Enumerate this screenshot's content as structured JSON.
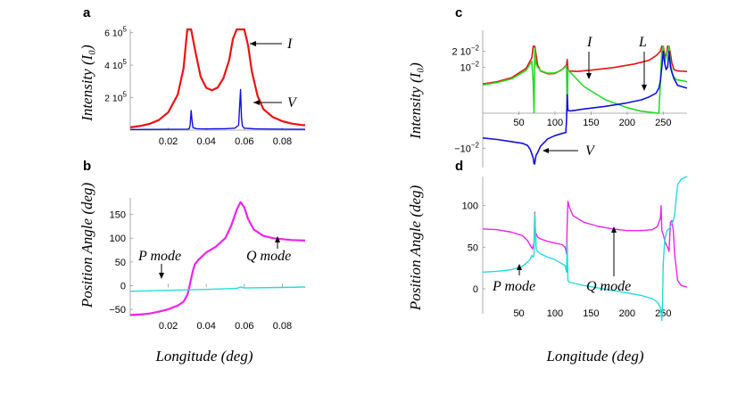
{
  "chart_data": [
    {
      "panel": "a",
      "type": "line",
      "ylabel": "Intensity (I₀)",
      "xlim": [
        0,
        0.092
      ],
      "ylim": [
        0,
        620000
      ],
      "xticks": [
        0.02,
        0.04,
        0.06,
        0.08
      ],
      "xtick_labels": [
        "0.02",
        "0.04",
        "0.06",
        "0.08"
      ],
      "yticks": [
        200000,
        400000,
        600000
      ],
      "ytick_labels": [
        "2 10⁵",
        "4 10⁵",
        "6 10⁵"
      ],
      "series": [
        {
          "name": "I",
          "color": "#ee1111",
          "x": [
            0,
            0.005,
            0.01,
            0.015,
            0.02,
            0.025,
            0.028,
            0.03,
            0.032,
            0.034,
            0.037,
            0.04,
            0.043,
            0.046,
            0.049,
            0.052,
            0.054,
            0.056,
            0.058,
            0.06,
            0.062,
            0.064,
            0.067,
            0.07,
            0.075,
            0.08,
            0.085,
            0.09,
            0.092
          ],
          "y": [
            17000,
            25000,
            38000,
            62000,
            110000,
            220000,
            380000,
            620000,
            620000,
            500000,
            330000,
            260000,
            245000,
            262000,
            320000,
            430000,
            560000,
            620000,
            620000,
            620000,
            520000,
            360000,
            210000,
            130000,
            80000,
            55000,
            40000,
            32000,
            30000
          ]
        },
        {
          "name": "V",
          "color": "#1111dd",
          "x": [
            0,
            0.01,
            0.02,
            0.03,
            0.031,
            0.0315,
            0.032,
            0.0325,
            0.033,
            0.035,
            0.04,
            0.045,
            0.05,
            0.055,
            0.057,
            0.058,
            0.0585,
            0.059,
            0.06,
            0.065,
            0.07,
            0.08,
            0.092
          ],
          "y": [
            4000,
            4500,
            5000,
            6000,
            8000,
            30000,
            120000,
            60000,
            15000,
            9000,
            7000,
            8000,
            9000,
            12000,
            30000,
            250000,
            80000,
            25000,
            12000,
            8000,
            7000,
            6000,
            5000
          ]
        }
      ],
      "annotations": [
        "I",
        "V"
      ]
    },
    {
      "panel": "b",
      "type": "line",
      "ylabel": "Position Angle (deg)",
      "xlabel": "Longitude (deg)",
      "xlim": [
        0,
        0.092
      ],
      "ylim": [
        -65,
        185
      ],
      "xticks": [
        0.02,
        0.04,
        0.06,
        0.08
      ],
      "xtick_labels": [
        "0.02",
        "0.04",
        "0.06",
        "0.08"
      ],
      "yticks": [
        -50,
        0,
        50,
        100,
        150
      ],
      "ytick_labels": [
        "−50",
        "0",
        "50",
        "100",
        "150"
      ],
      "series": [
        {
          "name": "Q mode",
          "color": "#ee22ee",
          "x": [
            0,
            0.005,
            0.01,
            0.015,
            0.02,
            0.025,
            0.028,
            0.03,
            0.031,
            0.032,
            0.033,
            0.034,
            0.036,
            0.04,
            0.045,
            0.05,
            0.053,
            0.056,
            0.058,
            0.06,
            0.062,
            0.065,
            0.07,
            0.075,
            0.08,
            0.085,
            0.092
          ],
          "y": [
            -62,
            -61,
            -59,
            -55,
            -50,
            -42,
            -34,
            -20,
            -5,
            15,
            32,
            45,
            55,
            70,
            82,
            100,
            125,
            160,
            176,
            165,
            140,
            118,
            105,
            100,
            98,
            96,
            95
          ]
        },
        {
          "name": "P mode",
          "color": "#22dddd",
          "x": [
            0,
            0.02,
            0.04,
            0.056,
            0.058,
            0.06,
            0.08,
            0.092
          ],
          "y": [
            -12,
            -10,
            -8,
            -6,
            -3,
            -5,
            -4,
            -3
          ]
        }
      ],
      "annotations": [
        "P mode",
        "Q mode"
      ]
    },
    {
      "panel": "c",
      "type": "line",
      "ylabel": "Intensity (I₀)",
      "xlim": [
        0,
        283
      ],
      "xticks": [
        50,
        100,
        150,
        200,
        250
      ],
      "xtick_labels": [
        "50",
        "100",
        "150",
        "200",
        "250"
      ],
      "ytick_labels": [
        "2 10⁻²",
        "10⁻²",
        "−10⁻²"
      ],
      "yscale": "symlog",
      "series": [
        {
          "name": "I",
          "color": "#ee1111",
          "x": [
            0,
            20,
            40,
            60,
            68,
            70,
            72,
            74,
            76,
            80,
            90,
            100,
            110,
            116,
            117,
            118,
            120,
            130,
            150,
            180,
            210,
            230,
            240,
            246,
            248,
            250,
            252,
            254,
            256,
            258,
            260,
            262,
            265,
            270,
            283
          ],
          "y": [
            0.0048,
            0.0053,
            0.0063,
            0.0095,
            0.015,
            0.025,
            0.025,
            0.017,
            0.011,
            0.0085,
            0.0075,
            0.0076,
            0.009,
            0.011,
            0.014,
            0.009,
            0.0085,
            0.0083,
            0.0088,
            0.0098,
            0.0115,
            0.0135,
            0.0165,
            0.02,
            0.025,
            0.025,
            0.018,
            0.015,
            0.025,
            0.025,
            0.018,
            0.012,
            0.009,
            0.0085,
            0.0083
          ]
        },
        {
          "name": "L",
          "color": "#22dd22",
          "x": [
            0,
            20,
            40,
            60,
            68,
            70,
            71,
            72,
            74,
            76,
            80,
            90,
            100,
            110,
            116,
            117,
            118,
            120,
            140,
            170,
            200,
            220,
            235,
            240,
            244,
            246,
            248,
            250,
            252,
            256,
            258,
            260,
            263,
            268,
            283
          ],
          "y": [
            0.0046,
            0.0051,
            0.006,
            0.0087,
            0.013,
            0.005,
            0.0003,
            0.022,
            0.0112,
            0.0101,
            0.0086,
            0.0077,
            0.0078,
            0.009,
            0.0106,
            0.001,
            0.0088,
            0.0084,
            0.0043,
            0.0024,
            0.0017,
            0.0011,
            0.0004,
            0.0001,
            4e-05,
            0.005,
            0.02,
            0.025,
            0.012,
            0.02,
            0.025,
            0.012,
            0.007,
            0.0058,
            0.0053
          ]
        },
        {
          "name": "V",
          "color": "#1111dd",
          "x": [
            0,
            20,
            40,
            55,
            62,
            66,
            68,
            70,
            71,
            72,
            73,
            74,
            76,
            80,
            90,
            100,
            110,
            115,
            116,
            117,
            118,
            122,
            140,
            170,
            200,
            220,
            230,
            240,
            244,
            246,
            248,
            250,
            252,
            254,
            256,
            258,
            260,
            262,
            265,
            270,
            283
          ],
          "y": [
            -0.0055,
            -0.006,
            -0.0068,
            -0.0075,
            -0.0085,
            -0.011,
            -0.014,
            -0.018,
            -0.025,
            -0.025,
            -0.018,
            -0.015,
            -0.013,
            -0.009,
            -0.0058,
            -0.0048,
            -0.0042,
            -0.004,
            -0.002,
            0.003,
            0.0015,
            0.0013,
            0.0016,
            0.0018,
            0.0021,
            0.0024,
            0.0027,
            0.0032,
            0.004,
            0.0055,
            0.01,
            0.02,
            0.012,
            0.009,
            0.01,
            0.02,
            0.01,
            0.008,
            0.006,
            0.0045,
            0.004
          ]
        }
      ],
      "annotations": [
        "I",
        "L",
        "V"
      ]
    },
    {
      "panel": "d",
      "type": "line",
      "ylabel": "Position Angle (deg)",
      "xlabel": "Longitude (deg)",
      "xlim": [
        0,
        283
      ],
      "ylim": [
        -30,
        135
      ],
      "xticks": [
        50,
        100,
        150,
        200,
        250
      ],
      "xtick_labels": [
        "50",
        "100",
        "150",
        "200",
        "250"
      ],
      "yticks": [
        0,
        50,
        100
      ],
      "ytick_labels": [
        "0",
        "50",
        "100"
      ],
      "series": [
        {
          "name": "Q mode",
          "color": "#ee22ee",
          "x": [
            0,
            20,
            40,
            55,
            62,
            66,
            69,
            71,
            72,
            73,
            76,
            80,
            90,
            100,
            110,
            114,
            115,
            116,
            117,
            118,
            120,
            125,
            140,
            160,
            180,
            200,
            220,
            235,
            242,
            246,
            247,
            248,
            250,
            253,
            256,
            258,
            260,
            262,
            264,
            266,
            270,
            275,
            283
          ],
          "y": [
            72,
            71,
            68,
            64,
            58,
            52,
            48,
            55,
            92,
            68,
            62,
            60,
            57,
            55,
            53,
            50,
            47,
            42,
            80,
            105,
            98,
            88,
            80,
            75,
            72,
            70,
            70,
            71,
            75,
            85,
            100,
            70,
            65,
            55,
            50,
            45,
            80,
            82,
            70,
            40,
            10,
            4,
            2
          ]
        },
        {
          "name": "P mode",
          "color": "#22dddd",
          "x": [
            0,
            20,
            40,
            55,
            62,
            66,
            68,
            70,
            71,
            72,
            74,
            76,
            80,
            90,
            100,
            110,
            114,
            115,
            116,
            117,
            118,
            120,
            125,
            140,
            160,
            180,
            200,
            220,
            235,
            242,
            246,
            248,
            249,
            250,
            252,
            255,
            258,
            260,
            262,
            264,
            266,
            268,
            270,
            275,
            283
          ],
          "y": [
            20,
            21,
            23,
            27,
            32,
            36,
            40,
            38,
            42,
            90,
            48,
            45,
            42,
            38,
            35,
            30,
            28,
            25,
            20,
            55,
            10,
            8,
            7,
            4,
            1,
            -2,
            -5,
            -8,
            -12,
            -16,
            -22,
            -38,
            -18,
            30,
            58,
            70,
            72,
            75,
            78,
            82,
            90,
            110,
            125,
            132,
            135
          ]
        }
      ],
      "annotations": [
        "P mode",
        "Q mode"
      ]
    }
  ],
  "panels": {
    "a": {
      "letter": "a",
      "ylabel": "Intensity (I₀)",
      "ann_i": "I",
      "ann_v": "V"
    },
    "b": {
      "letter": "b",
      "ylabel": "Position Angle (deg)",
      "xlabel": "Longitude (deg)",
      "ann_p": "P mode",
      "ann_q": "Q mode"
    },
    "c": {
      "letter": "c",
      "ylabel": "Intensity (I₀)",
      "ann_i": "I",
      "ann_l": "L",
      "ann_v": "V"
    },
    "d": {
      "letter": "d",
      "ylabel": "Position Angle (deg)",
      "xlabel": "Longitude (deg)",
      "ann_p": "P mode",
      "ann_q": "Q mode"
    }
  },
  "colors": {
    "red": "#ee1111",
    "blue": "#1111dd",
    "green": "#22dd22",
    "magenta": "#ee22ee",
    "cyan": "#22dddd"
  }
}
